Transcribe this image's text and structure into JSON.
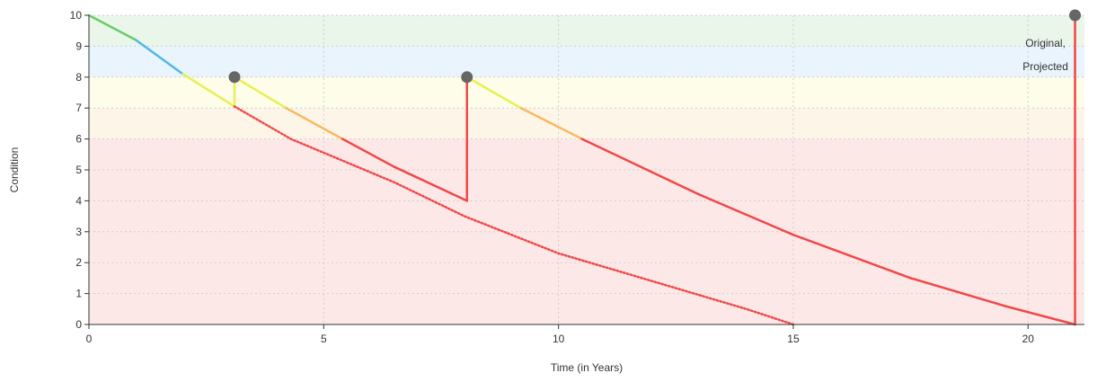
{
  "chart_data": {
    "type": "line",
    "title": "",
    "xlabel": "Time (in Years)",
    "ylabel": "Condition",
    "xlim": [
      0,
      21.2
    ],
    "ylim": [
      0,
      10
    ],
    "grid": true,
    "x_ticks": [
      0,
      5,
      10,
      15,
      20
    ],
    "y_ticks": [
      0,
      1,
      2,
      3,
      4,
      5,
      6,
      7,
      8,
      9,
      10
    ],
    "bands": [
      {
        "from": 0,
        "to": 6,
        "color": "#fde8e8"
      },
      {
        "from": 6,
        "to": 7,
        "color": "#fdf5e8"
      },
      {
        "from": 7,
        "to": 8,
        "color": "#fdfde9"
      },
      {
        "from": 8,
        "to": 9,
        "color": "#e9f4fc"
      },
      {
        "from": 9,
        "to": 10,
        "color": "#eaf6ea"
      }
    ],
    "condition_colors": [
      {
        "min": 9,
        "color": "#66cc66"
      },
      {
        "min": 8,
        "color": "#4db8e8"
      },
      {
        "min": 7,
        "color": "#e8ef50"
      },
      {
        "min": 6,
        "color": "#f7b962"
      },
      {
        "min": 0,
        "color": "#f04848"
      }
    ],
    "series": [
      {
        "name": "Projected",
        "style": "solid",
        "points": [
          {
            "x": 0,
            "y": 10
          },
          {
            "x": 1,
            "y": 9.2
          },
          {
            "x": 2,
            "y": 8.1
          },
          {
            "x": 3.1,
            "y": 7.05
          },
          {
            "x": 3.1,
            "y": 8
          },
          {
            "x": 4.2,
            "y": 7
          },
          {
            "x": 5.4,
            "y": 6
          },
          {
            "x": 6.5,
            "y": 5.1
          },
          {
            "x": 8.05,
            "y": 4.0
          },
          {
            "x": 8.05,
            "y": 8
          },
          {
            "x": 9.2,
            "y": 7
          },
          {
            "x": 10.5,
            "y": 6
          },
          {
            "x": 13.0,
            "y": 4.2
          },
          {
            "x": 15.0,
            "y": 2.9
          },
          {
            "x": 17.5,
            "y": 1.5
          },
          {
            "x": 19.5,
            "y": 0.6
          },
          {
            "x": 21.0,
            "y": 0
          },
          {
            "x": 21.0,
            "y": 10
          }
        ]
      },
      {
        "name": "Original",
        "style": "dotted",
        "points": [
          {
            "x": 3.1,
            "y": 7.05
          },
          {
            "x": 4.3,
            "y": 6.0
          },
          {
            "x": 6.5,
            "y": 4.6
          },
          {
            "x": 8.0,
            "y": 3.5
          },
          {
            "x": 10.0,
            "y": 2.3
          },
          {
            "x": 12.0,
            "y": 1.4
          },
          {
            "x": 14.0,
            "y": 0.5
          },
          {
            "x": 15.0,
            "y": 0
          }
        ]
      }
    ],
    "markers": [
      {
        "x": 3.1,
        "y": 8
      },
      {
        "x": 8.05,
        "y": 8
      },
      {
        "x": 21.0,
        "y": 10
      }
    ],
    "annotations": [
      "Original,",
      "Projected"
    ],
    "colors": {
      "axis": "#333333",
      "grid": "#cfcfcf",
      "marker": "#666666",
      "tick_text": "#333333",
      "dotted_line": "#f04848"
    }
  }
}
